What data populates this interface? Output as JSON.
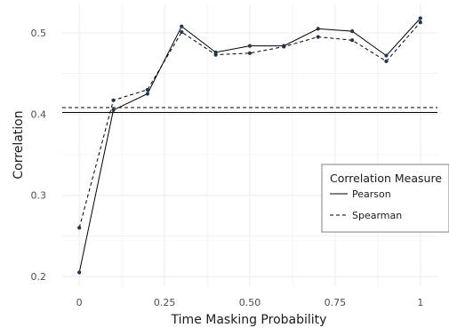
{
  "chart_data": {
    "type": "line",
    "title": "",
    "xlabel": "Time Masking Probability",
    "ylabel": "Correlation",
    "xlim": [
      -0.05,
      1.05
    ],
    "ylim": [
      0.188,
      0.535
    ],
    "x_ticks": [
      0,
      0.25,
      0.5,
      0.75,
      1
    ],
    "x_tick_labels": [
      "0",
      "0.25",
      "0.50",
      "0.75",
      "1"
    ],
    "y_ticks": [
      0.2,
      0.3,
      0.4,
      0.5
    ],
    "y_tick_labels": [
      "0.2",
      "0.3",
      "0.4",
      "0.5"
    ],
    "grid": true,
    "x": [
      0,
      0.1,
      0.2,
      0.3,
      0.4,
      0.5,
      0.6,
      0.7,
      0.8,
      0.9,
      1.0
    ],
    "series": [
      {
        "name": "Pearson",
        "line_style": "solid",
        "values": [
          0.205,
          0.405,
          0.425,
          0.508,
          0.476,
          0.484,
          0.484,
          0.505,
          0.502,
          0.472,
          0.518
        ],
        "baseline": 0.402
      },
      {
        "name": "Spearman",
        "line_style": "dashed",
        "values": [
          0.26,
          0.417,
          0.43,
          0.501,
          0.473,
          0.475,
          0.483,
          0.495,
          0.491,
          0.465,
          0.513
        ],
        "baseline": 0.408
      }
    ],
    "legend": {
      "title": "Correlation Measure",
      "position": "right",
      "entries": [
        "Pearson",
        "Spearman"
      ]
    },
    "colors": {
      "line": "#000000",
      "point": "#1f3550",
      "grid": "#ebebeb",
      "legend_border": "#7f7f7f"
    }
  }
}
